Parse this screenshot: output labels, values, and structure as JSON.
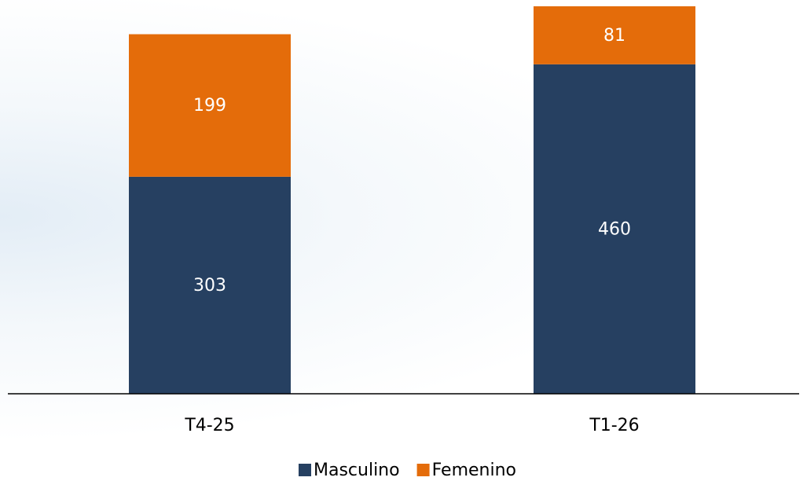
{
  "chart_data": {
    "type": "stacked_bar",
    "categories": [
      "T4-25",
      "T1-26"
    ],
    "series": [
      {
        "name": "Masculino",
        "color": "#264061",
        "values": [
          303,
          460
        ]
      },
      {
        "name": "Femenino",
        "color": "#e46c0a",
        "values": [
          199,
          81
        ]
      }
    ],
    "legend": "bottom"
  }
}
